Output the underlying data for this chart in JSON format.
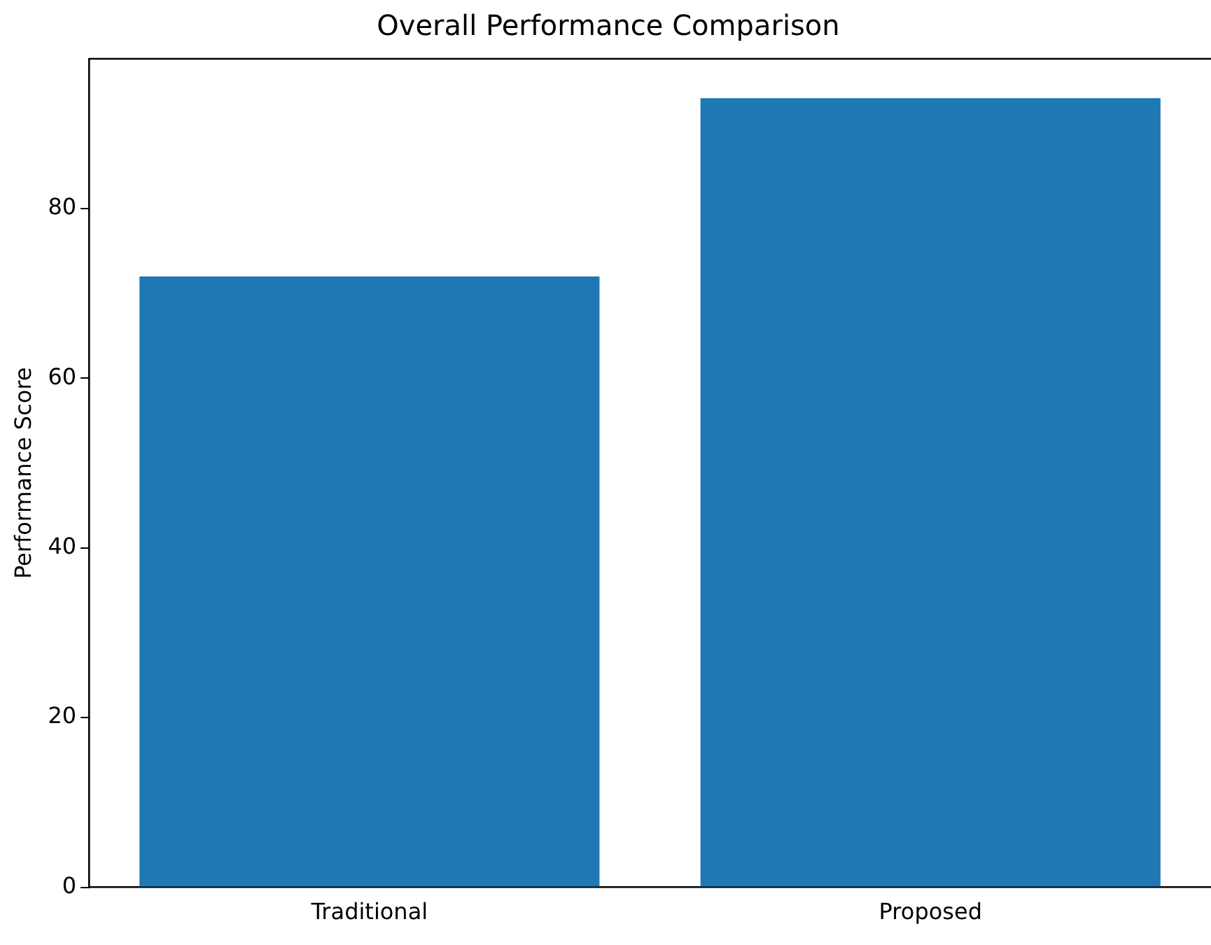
{
  "chart_data": {
    "type": "bar",
    "title": "Overall Performance Comparison",
    "ylabel": "Performance Score",
    "categories": [
      "Traditional",
      "Proposed"
    ],
    "values": [
      72,
      93
    ],
    "color": "#1f77b4",
    "ylim": [
      0,
      97.65
    ],
    "yticks": [
      0,
      20,
      40,
      60,
      80
    ],
    "grid": false,
    "legend": false
  }
}
